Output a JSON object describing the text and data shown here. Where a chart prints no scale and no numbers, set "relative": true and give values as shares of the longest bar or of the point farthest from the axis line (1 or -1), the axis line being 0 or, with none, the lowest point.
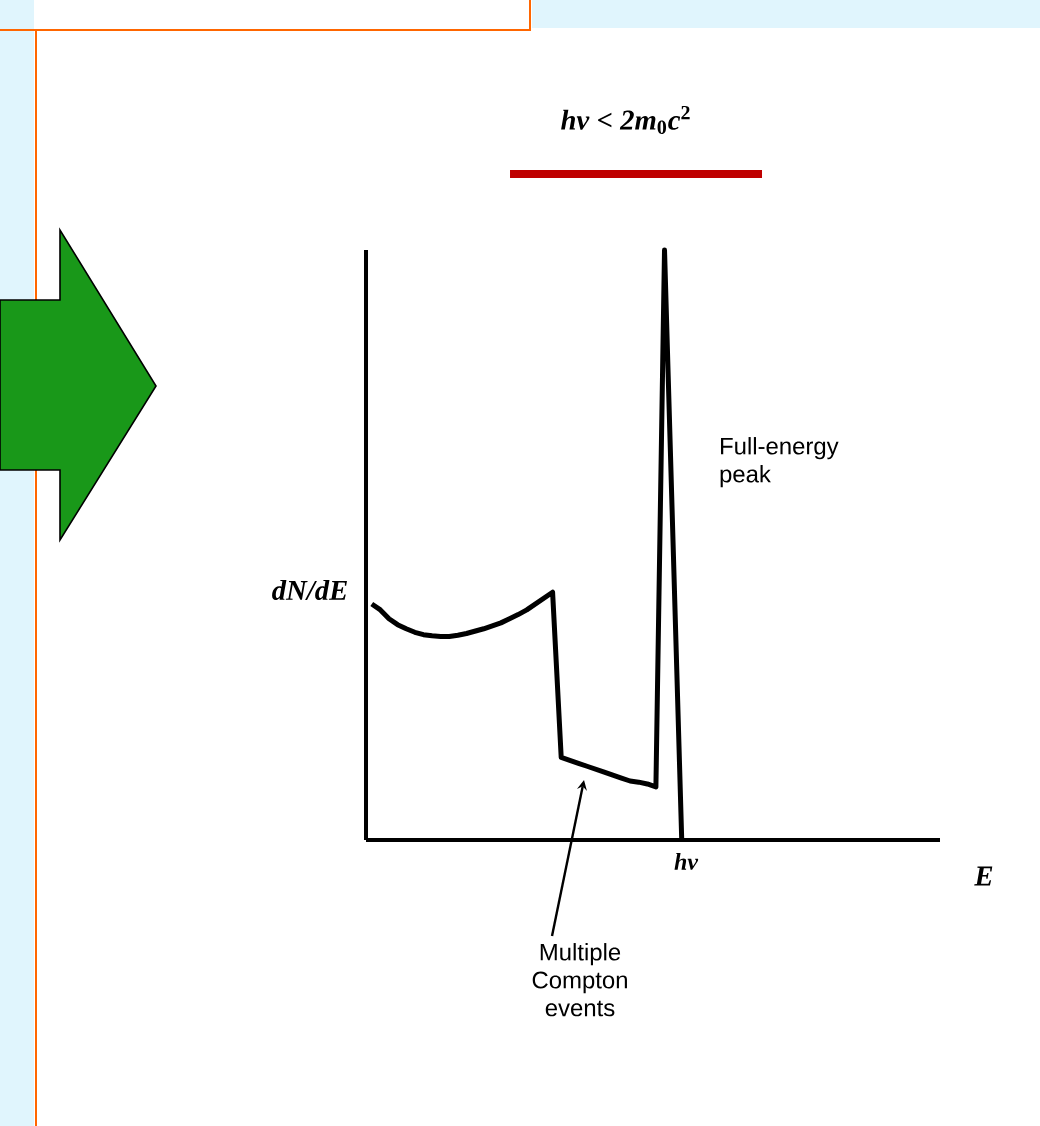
{
  "chart_data": {
    "type": "line",
    "title": "*hν* < *2m*$_{0}$*c*$^{2}$",
    "ylabel": "dN/dE",
    "relative": true,
    "categories": [
      null,
      null,
      null,
      null,
      null,
      null,
      null,
      null,
      null,
      null,
      null,
      null,
      null,
      null,
      null,
      null,
      null,
      null,
      null,
      null,
      null,
      null,
      null,
      null,
      null,
      null,
      null,
      null,
      null,
      null,
      null,
      null,
      null,
      null,
      null,
      null,
      null
    ],
    "series": [
      {
        "color": "#000000",
        "values": [
          0.4,
          0.39,
          0.375,
          0.365,
          0.358,
          0.352,
          0.348,
          0.346,
          0.345,
          0.345,
          0.347,
          0.35,
          0.354,
          0.358,
          0.363,
          0.368,
          0.375,
          0.382,
          0.39,
          0.4,
          0.41,
          0.42,
          0.14,
          0.135,
          0.13,
          0.125,
          0.12,
          0.115,
          0.11,
          0.105,
          0.1,
          0.098,
          0.095,
          0.09,
          1,
          0.5,
          0
        ]
      }
    ],
    "annotations": [
      "Full-energy peak",
      "Multiple Compton events",
      "hν",
      "E"
    ]
  }
}
